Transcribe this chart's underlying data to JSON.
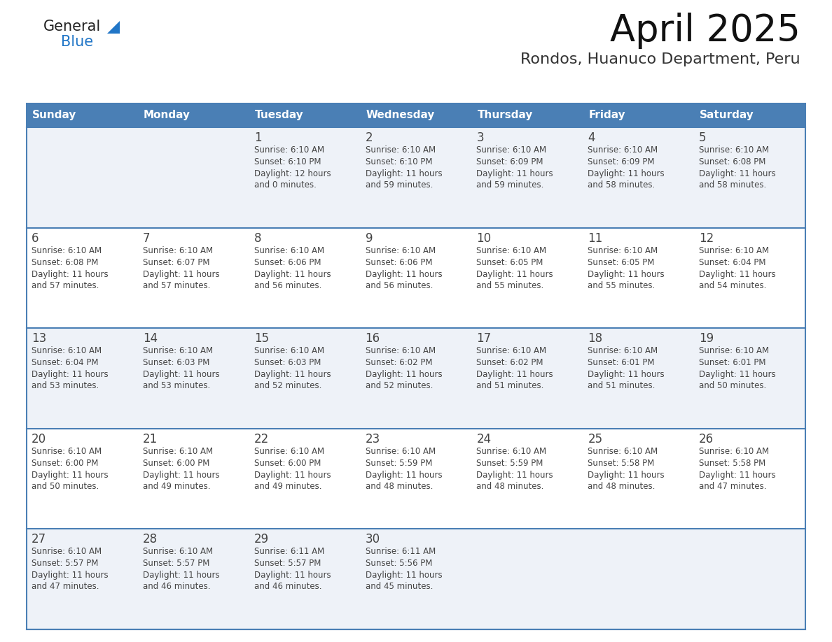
{
  "title": "April 2025",
  "subtitle": "Rondos, Huanuco Department, Peru",
  "header_bg_color": "#4a7fb5",
  "header_text_color": "#ffffff",
  "row_bg_even": "#eef2f8",
  "row_bg_odd": "#ffffff",
  "border_color": "#4a7fb5",
  "text_color": "#444444",
  "days_of_week": [
    "Sunday",
    "Monday",
    "Tuesday",
    "Wednesday",
    "Thursday",
    "Friday",
    "Saturday"
  ],
  "logo_text1": "General",
  "logo_text2": "Blue",
  "logo_color1": "#222222",
  "logo_color2": "#2176c7",
  "tri_color": "#2176c7",
  "calendar": [
    [
      {
        "day": "",
        "sunrise": "",
        "sunset": "",
        "daylight1": "",
        "daylight2": ""
      },
      {
        "day": "",
        "sunrise": "",
        "sunset": "",
        "daylight1": "",
        "daylight2": ""
      },
      {
        "day": "1",
        "sunrise": "Sunrise: 6:10 AM",
        "sunset": "Sunset: 6:10 PM",
        "daylight1": "Daylight: 12 hours",
        "daylight2": "and 0 minutes."
      },
      {
        "day": "2",
        "sunrise": "Sunrise: 6:10 AM",
        "sunset": "Sunset: 6:10 PM",
        "daylight1": "Daylight: 11 hours",
        "daylight2": "and 59 minutes."
      },
      {
        "day": "3",
        "sunrise": "Sunrise: 6:10 AM",
        "sunset": "Sunset: 6:09 PM",
        "daylight1": "Daylight: 11 hours",
        "daylight2": "and 59 minutes."
      },
      {
        "day": "4",
        "sunrise": "Sunrise: 6:10 AM",
        "sunset": "Sunset: 6:09 PM",
        "daylight1": "Daylight: 11 hours",
        "daylight2": "and 58 minutes."
      },
      {
        "day": "5",
        "sunrise": "Sunrise: 6:10 AM",
        "sunset": "Sunset: 6:08 PM",
        "daylight1": "Daylight: 11 hours",
        "daylight2": "and 58 minutes."
      }
    ],
    [
      {
        "day": "6",
        "sunrise": "Sunrise: 6:10 AM",
        "sunset": "Sunset: 6:08 PM",
        "daylight1": "Daylight: 11 hours",
        "daylight2": "and 57 minutes."
      },
      {
        "day": "7",
        "sunrise": "Sunrise: 6:10 AM",
        "sunset": "Sunset: 6:07 PM",
        "daylight1": "Daylight: 11 hours",
        "daylight2": "and 57 minutes."
      },
      {
        "day": "8",
        "sunrise": "Sunrise: 6:10 AM",
        "sunset": "Sunset: 6:06 PM",
        "daylight1": "Daylight: 11 hours",
        "daylight2": "and 56 minutes."
      },
      {
        "day": "9",
        "sunrise": "Sunrise: 6:10 AM",
        "sunset": "Sunset: 6:06 PM",
        "daylight1": "Daylight: 11 hours",
        "daylight2": "and 56 minutes."
      },
      {
        "day": "10",
        "sunrise": "Sunrise: 6:10 AM",
        "sunset": "Sunset: 6:05 PM",
        "daylight1": "Daylight: 11 hours",
        "daylight2": "and 55 minutes."
      },
      {
        "day": "11",
        "sunrise": "Sunrise: 6:10 AM",
        "sunset": "Sunset: 6:05 PM",
        "daylight1": "Daylight: 11 hours",
        "daylight2": "and 55 minutes."
      },
      {
        "day": "12",
        "sunrise": "Sunrise: 6:10 AM",
        "sunset": "Sunset: 6:04 PM",
        "daylight1": "Daylight: 11 hours",
        "daylight2": "and 54 minutes."
      }
    ],
    [
      {
        "day": "13",
        "sunrise": "Sunrise: 6:10 AM",
        "sunset": "Sunset: 6:04 PM",
        "daylight1": "Daylight: 11 hours",
        "daylight2": "and 53 minutes."
      },
      {
        "day": "14",
        "sunrise": "Sunrise: 6:10 AM",
        "sunset": "Sunset: 6:03 PM",
        "daylight1": "Daylight: 11 hours",
        "daylight2": "and 53 minutes."
      },
      {
        "day": "15",
        "sunrise": "Sunrise: 6:10 AM",
        "sunset": "Sunset: 6:03 PM",
        "daylight1": "Daylight: 11 hours",
        "daylight2": "and 52 minutes."
      },
      {
        "day": "16",
        "sunrise": "Sunrise: 6:10 AM",
        "sunset": "Sunset: 6:02 PM",
        "daylight1": "Daylight: 11 hours",
        "daylight2": "and 52 minutes."
      },
      {
        "day": "17",
        "sunrise": "Sunrise: 6:10 AM",
        "sunset": "Sunset: 6:02 PM",
        "daylight1": "Daylight: 11 hours",
        "daylight2": "and 51 minutes."
      },
      {
        "day": "18",
        "sunrise": "Sunrise: 6:10 AM",
        "sunset": "Sunset: 6:01 PM",
        "daylight1": "Daylight: 11 hours",
        "daylight2": "and 51 minutes."
      },
      {
        "day": "19",
        "sunrise": "Sunrise: 6:10 AM",
        "sunset": "Sunset: 6:01 PM",
        "daylight1": "Daylight: 11 hours",
        "daylight2": "and 50 minutes."
      }
    ],
    [
      {
        "day": "20",
        "sunrise": "Sunrise: 6:10 AM",
        "sunset": "Sunset: 6:00 PM",
        "daylight1": "Daylight: 11 hours",
        "daylight2": "and 50 minutes."
      },
      {
        "day": "21",
        "sunrise": "Sunrise: 6:10 AM",
        "sunset": "Sunset: 6:00 PM",
        "daylight1": "Daylight: 11 hours",
        "daylight2": "and 49 minutes."
      },
      {
        "day": "22",
        "sunrise": "Sunrise: 6:10 AM",
        "sunset": "Sunset: 6:00 PM",
        "daylight1": "Daylight: 11 hours",
        "daylight2": "and 49 minutes."
      },
      {
        "day": "23",
        "sunrise": "Sunrise: 6:10 AM",
        "sunset": "Sunset: 5:59 PM",
        "daylight1": "Daylight: 11 hours",
        "daylight2": "and 48 minutes."
      },
      {
        "day": "24",
        "sunrise": "Sunrise: 6:10 AM",
        "sunset": "Sunset: 5:59 PM",
        "daylight1": "Daylight: 11 hours",
        "daylight2": "and 48 minutes."
      },
      {
        "day": "25",
        "sunrise": "Sunrise: 6:10 AM",
        "sunset": "Sunset: 5:58 PM",
        "daylight1": "Daylight: 11 hours",
        "daylight2": "and 48 minutes."
      },
      {
        "day": "26",
        "sunrise": "Sunrise: 6:10 AM",
        "sunset": "Sunset: 5:58 PM",
        "daylight1": "Daylight: 11 hours",
        "daylight2": "and 47 minutes."
      }
    ],
    [
      {
        "day": "27",
        "sunrise": "Sunrise: 6:10 AM",
        "sunset": "Sunset: 5:57 PM",
        "daylight1": "Daylight: 11 hours",
        "daylight2": "and 47 minutes."
      },
      {
        "day": "28",
        "sunrise": "Sunrise: 6:10 AM",
        "sunset": "Sunset: 5:57 PM",
        "daylight1": "Daylight: 11 hours",
        "daylight2": "and 46 minutes."
      },
      {
        "day": "29",
        "sunrise": "Sunrise: 6:11 AM",
        "sunset": "Sunset: 5:57 PM",
        "daylight1": "Daylight: 11 hours",
        "daylight2": "and 46 minutes."
      },
      {
        "day": "30",
        "sunrise": "Sunrise: 6:11 AM",
        "sunset": "Sunset: 5:56 PM",
        "daylight1": "Daylight: 11 hours",
        "daylight2": "and 45 minutes."
      },
      {
        "day": "",
        "sunrise": "",
        "sunset": "",
        "daylight1": "",
        "daylight2": ""
      },
      {
        "day": "",
        "sunrise": "",
        "sunset": "",
        "daylight1": "",
        "daylight2": ""
      },
      {
        "day": "",
        "sunrise": "",
        "sunset": "",
        "daylight1": "",
        "daylight2": ""
      }
    ]
  ]
}
